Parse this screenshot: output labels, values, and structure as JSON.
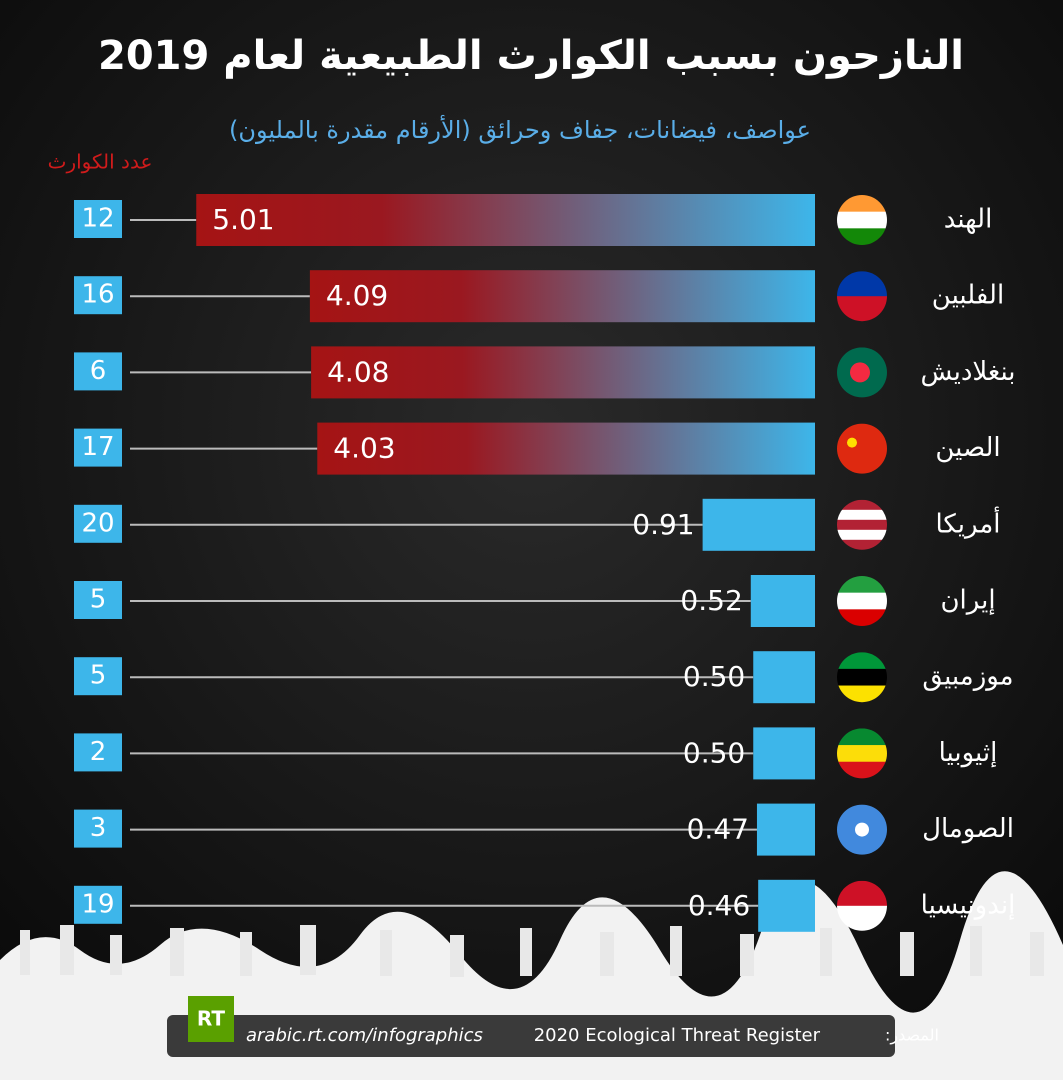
{
  "chart_data": {
    "type": "bar",
    "title": "النازحون بسبب الكوارث الطبيعية لعام 2019",
    "subtitle": "عواصف، فيضانات، جفاف وحرائق  (الأرقام مقدرة بالمليون)",
    "count_label": "عدد الكوارث",
    "categories": [
      "الهند",
      "الفلبين",
      "بنغلاديش",
      "الصين",
      "أمريكا",
      "إيران",
      "موزمبيق",
      "إثيوبيا",
      "الصومال",
      "إندونيسيا"
    ],
    "values": [
      5.01,
      4.09,
      4.08,
      4.03,
      0.91,
      0.52,
      0.5,
      0.5,
      0.47,
      0.46
    ],
    "value_labels": [
      "5.01",
      "4.09",
      "4.08",
      "4.03",
      "0.91",
      "0.52",
      "0.50",
      "0.50",
      "0.47",
      "0.46"
    ],
    "counts": [
      12,
      16,
      6,
      17,
      20,
      5,
      5,
      2,
      3,
      19
    ],
    "color": "#3db6ea",
    "highlight_color": "#a51414",
    "logo": "RT",
    "url": "arabic.rt.com/infographics",
    "source_label": "المصدر:",
    "source": "2020 Ecological Threat Register"
  }
}
